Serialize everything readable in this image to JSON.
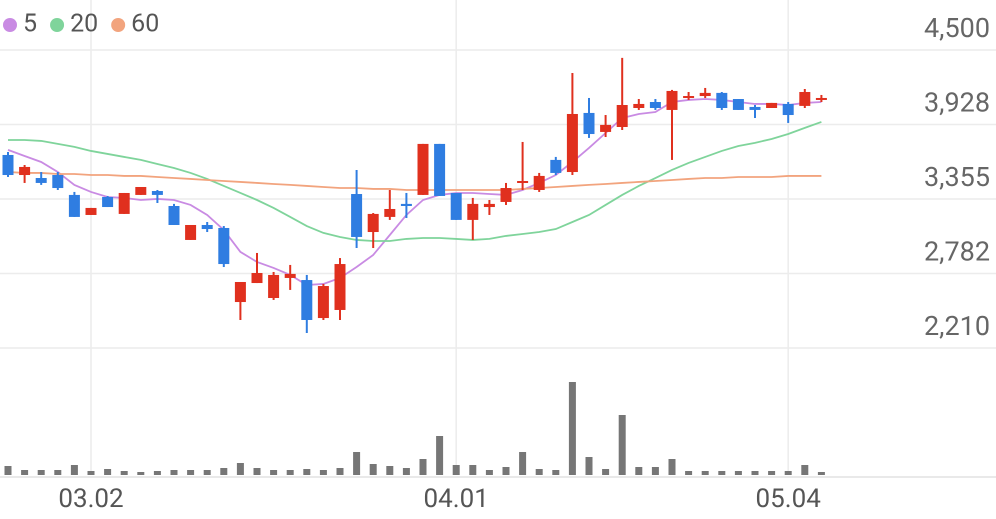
{
  "chart_data": {
    "type": "candlestick",
    "categories": [
      null,
      null,
      null,
      null,
      null,
      "03.02",
      null,
      null,
      null,
      null,
      null,
      null,
      null,
      null,
      null,
      null,
      null,
      null,
      null,
      null,
      null,
      null,
      null,
      null,
      null,
      null,
      null,
      "04.01",
      null,
      null,
      null,
      null,
      null,
      null,
      null,
      null,
      null,
      null,
      null,
      null,
      null,
      null,
      null,
      null,
      null,
      null,
      null,
      "05.04",
      null,
      null
    ],
    "open": [
      3693,
      3539,
      3516,
      3539,
      3386,
      3232,
      3370,
      3240,
      3386,
      3416,
      3301,
      3040,
      3155,
      3132,
      2563,
      2709,
      2594,
      2748,
      2732,
      2440,
      2502,
      3393,
      3101,
      3217,
      3317,
      3386,
      3778,
      3401,
      3194,
      3293,
      3332,
      3478,
      3424,
      3655,
      3562,
      4016,
      3870,
      3908,
      4054,
      4100,
      4039,
      4131,
      4146,
      4170,
      4123,
      4062,
      4054,
      4085,
      4070,
      4116
    ],
    "high": [
      3716,
      3616,
      3562,
      3562,
      3409,
      3286,
      3378,
      3401,
      3447,
      3424,
      3317,
      3155,
      3178,
      3147,
      2717,
      2940,
      2794,
      2848,
      2771,
      2702,
      2901,
      3578,
      3247,
      3424,
      3401,
      3778,
      3778,
      3401,
      3363,
      3347,
      3478,
      3793,
      3555,
      3678,
      4323,
      4131,
      4000,
      4439,
      4123,
      4123,
      4193,
      4177,
      4208,
      4177,
      4123,
      4077,
      4093,
      4100,
      4200,
      4154
    ],
    "low": [
      3524,
      3478,
      3463,
      3424,
      3217,
      3232,
      3293,
      3240,
      3386,
      3324,
      3155,
      3040,
      3101,
      2832,
      2425,
      2709,
      2579,
      2656,
      2325,
      2425,
      2425,
      2978,
      2978,
      3194,
      3209,
      3386,
      3378,
      3194,
      3040,
      3232,
      3309,
      3424,
      3409,
      3539,
      3539,
      3824,
      3831,
      3885,
      4039,
      4039,
      3655,
      4116,
      4131,
      4039,
      4039,
      3977,
      4054,
      3939,
      4054,
      4100
    ],
    "close": [
      3539,
      3601,
      3478,
      3439,
      3217,
      3286,
      3293,
      3401,
      3447,
      3386,
      3155,
      3155,
      3124,
      2855,
      2717,
      2786,
      2771,
      2779,
      2425,
      2686,
      2855,
      3063,
      3240,
      3278,
      3301,
      3778,
      3378,
      3194,
      3317,
      3317,
      3439,
      3493,
      3532,
      3555,
      4008,
      3854,
      3924,
      4077,
      4085,
      4054,
      4185,
      4146,
      4170,
      4054,
      4039,
      4039,
      4093,
      4000,
      4177,
      4131
    ],
    "up_color": "#e0301e",
    "down_color": "#2f7de1",
    "ma": [
      {
        "name": "5",
        "color": "#c98be3",
        "values": [
          3732,
          3685,
          3639,
          3562,
          3463,
          3409,
          3370,
          3363,
          3347,
          3355,
          3347,
          3309,
          3232,
          3117,
          2948,
          2871,
          2825,
          2771,
          2694,
          2702,
          2748,
          2832,
          2925,
          3078,
          3232,
          3347,
          3386,
          3401,
          3401,
          3393,
          3386,
          3424,
          3478,
          3539,
          3639,
          3747,
          3862,
          3977,
          4008,
          4023,
          4100,
          4116,
          4123,
          4116,
          4100,
          4085,
          4085,
          4077,
          4093,
          4100
        ]
      },
      {
        "name": "20",
        "color": "#7fd49b",
        "values": [
          3808,
          3808,
          3801,
          3778,
          3755,
          3724,
          3701,
          3678,
          3655,
          3624,
          3593,
          3555,
          3509,
          3455,
          3401,
          3347,
          3286,
          3217,
          3147,
          3094,
          3063,
          3040,
          3032,
          3032,
          3048,
          3055,
          3055,
          3048,
          3040,
          3048,
          3071,
          3086,
          3101,
          3124,
          3178,
          3232,
          3309,
          3386,
          3455,
          3516,
          3578,
          3632,
          3678,
          3724,
          3762,
          3786,
          3816,
          3854,
          3901,
          3947
        ]
      },
      {
        "name": "60",
        "color": "#f2a47e",
        "values": [
          3562,
          3555,
          3555,
          3547,
          3547,
          3539,
          3539,
          3532,
          3532,
          3524,
          3516,
          3509,
          3501,
          3493,
          3486,
          3478,
          3470,
          3463,
          3455,
          3447,
          3439,
          3439,
          3432,
          3432,
          3424,
          3424,
          3424,
          3424,
          3424,
          3424,
          3424,
          3432,
          3439,
          3447,
          3455,
          3463,
          3470,
          3478,
          3486,
          3493,
          3501,
          3509,
          3516,
          3516,
          3524,
          3524,
          3524,
          3532,
          3532,
          3532
        ]
      }
    ],
    "volume": [
      9,
      5,
      5,
      5,
      10,
      4,
      6,
      4,
      3,
      4,
      5,
      5,
      5,
      7,
      12,
      7,
      5,
      5,
      6,
      5,
      7,
      23,
      11,
      9,
      7,
      16,
      39,
      10,
      10,
      5,
      8,
      23,
      6,
      5,
      93,
      18,
      6,
      60,
      8,
      8,
      16,
      4,
      4,
      4,
      4,
      4,
      4,
      4,
      10,
      3
    ],
    "volume_color": "#767676",
    "volume_ylim": [
      0,
      120
    ],
    "ylim": [
      2156,
      4807
    ],
    "yticks": [
      {
        "value": 2210,
        "label": "2,210"
      },
      {
        "value": 2782.5,
        "label": "2,782"
      },
      {
        "value": 3355,
        "label": "3,355"
      },
      {
        "value": 3927.5,
        "label": "3,928"
      },
      {
        "value": 4500,
        "label": "4,500"
      }
    ],
    "grid": true
  }
}
